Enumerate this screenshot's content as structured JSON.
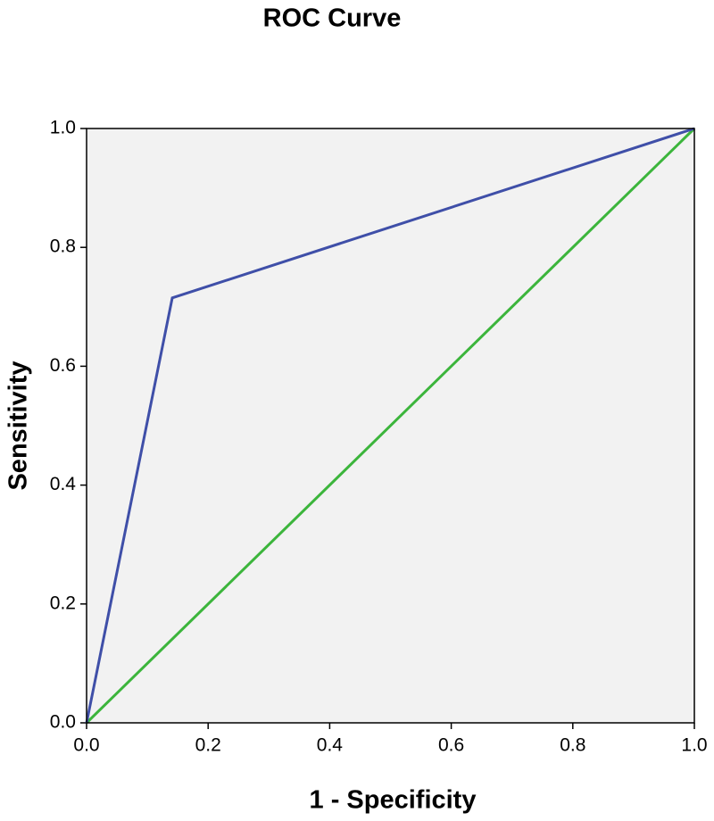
{
  "chart_data": {
    "type": "line",
    "title": "ROC Curve",
    "xlabel": "1 - Specificity",
    "ylabel": "Sensitivity",
    "series": [
      {
        "color": "#3f4fa8",
        "x": [
          0,
          0.141,
          1
        ],
        "values": [
          0,
          0.715,
          1
        ]
      },
      {
        "color": "#3cb53c",
        "x": [
          0,
          1
        ],
        "values": [
          0,
          1
        ]
      }
    ],
    "xlim": [
      0,
      1
    ],
    "ylim": [
      0,
      1
    ],
    "xticks": [
      {
        "value": 0,
        "label": "0.0"
      },
      {
        "value": 0.2,
        "label": "0.2"
      },
      {
        "value": 0.4,
        "label": "0.4"
      },
      {
        "value": 0.6,
        "label": "0.6"
      },
      {
        "value": 0.8,
        "label": "0.8"
      },
      {
        "value": 1,
        "label": "1.0"
      }
    ],
    "yticks": [
      {
        "value": 0,
        "label": "0.0"
      },
      {
        "value": 0.2,
        "label": "0.2"
      },
      {
        "value": 0.4,
        "label": "0.4"
      },
      {
        "value": 0.6,
        "label": "0.6"
      },
      {
        "value": 0.8,
        "label": "0.8"
      },
      {
        "value": 1,
        "label": "1.0"
      }
    ],
    "grid": false
  }
}
